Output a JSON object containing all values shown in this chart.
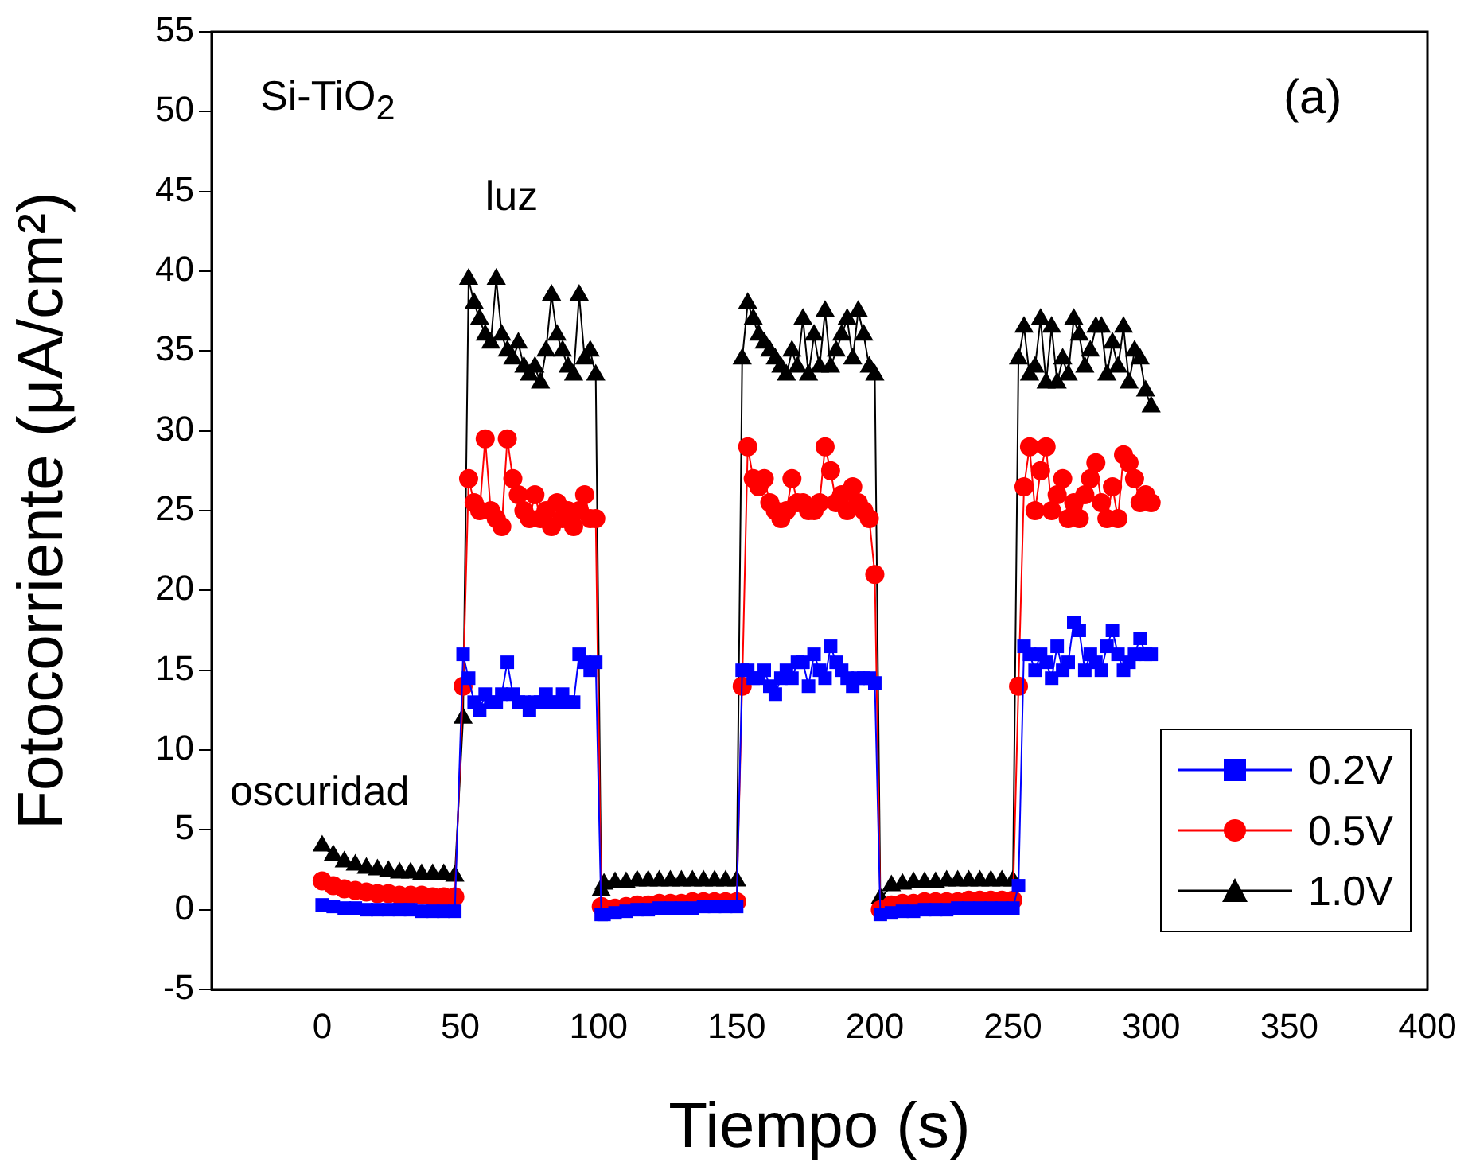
{
  "chart_data": {
    "type": "line",
    "xlabel": "Tiempo (s)",
    "ylabel": "Fotocorriente (μA/cm²)",
    "xlim": [
      -40,
      400
    ],
    "xticks": [
      0,
      50,
      100,
      150,
      200,
      250,
      300,
      350,
      400
    ],
    "ylim": [
      -5,
      55
    ],
    "yticks": [
      -5,
      0,
      5,
      10,
      15,
      20,
      25,
      30,
      35,
      40,
      45,
      50,
      55
    ],
    "grid": false,
    "legend": "bottom right",
    "line_style": "solid",
    "annotations": [
      "Si-TiO$_{2}$",
      "(a)",
      "luz",
      "oscuridad"
    ],
    "x": [
      0,
      4,
      8,
      12,
      16,
      20,
      24,
      28,
      32,
      36,
      40,
      44,
      48,
      51,
      53,
      55,
      57,
      59,
      61,
      63,
      65,
      67,
      69,
      71,
      73,
      75,
      77,
      79,
      81,
      83,
      85,
      87,
      89,
      91,
      93,
      95,
      97,
      99,
      101,
      102,
      106,
      110,
      114,
      118,
      122,
      126,
      130,
      134,
      138,
      142,
      146,
      150,
      152,
      154,
      156,
      158,
      160,
      162,
      164,
      166,
      168,
      170,
      172,
      174,
      176,
      178,
      180,
      182,
      184,
      186,
      188,
      190,
      192,
      194,
      196,
      198,
      200,
      202,
      206,
      210,
      214,
      218,
      222,
      226,
      230,
      234,
      238,
      242,
      246,
      250,
      252,
      254,
      256,
      258,
      260,
      262,
      264,
      266,
      268,
      270,
      272,
      274,
      276,
      278,
      280,
      282,
      284,
      286,
      288,
      290,
      292,
      294,
      296,
      298,
      300
    ],
    "series": [
      {
        "name": "0.2V",
        "color": "#0000ff",
        "marker": "square",
        "values": [
          0.3,
          0.2,
          0.1,
          0.1,
          0.0,
          0.0,
          0.0,
          0.0,
          0.0,
          -0.1,
          -0.1,
          -0.1,
          -0.1,
          16,
          14.5,
          13,
          12.5,
          13.5,
          13,
          13,
          13.5,
          15.5,
          13.5,
          13,
          13,
          12.5,
          13,
          13,
          13.5,
          13,
          13,
          13.5,
          13,
          13,
          16,
          15.5,
          15,
          15.5,
          -0.3,
          -0.3,
          -0.2,
          -0.1,
          0.0,
          0.0,
          0.1,
          0.1,
          0.1,
          0.1,
          0.2,
          0.2,
          0.2,
          0.2,
          15,
          15,
          14.5,
          14.5,
          15,
          14,
          13.5,
          14.5,
          15,
          14.5,
          15.5,
          15.5,
          14,
          16,
          15,
          14.5,
          16.5,
          15.5,
          15,
          14.5,
          14,
          14.5,
          14.5,
          14.5,
          14.2,
          -0.3,
          -0.2,
          -0.1,
          -0.1,
          0.0,
          0.0,
          0.0,
          0.1,
          0.1,
          0.1,
          0.1,
          0.1,
          0.1,
          1.5,
          16.5,
          16,
          15,
          16,
          15.5,
          14.5,
          16.5,
          15,
          15.5,
          18,
          17.5,
          15,
          16,
          15.5,
          15,
          16.5,
          17.5,
          16,
          15,
          15.5,
          16,
          17,
          16,
          16
        ]
      },
      {
        "name": "0.5V",
        "color": "#ff0000",
        "marker": "circle",
        "values": [
          1.8,
          1.5,
          1.3,
          1.2,
          1.1,
          1.0,
          1.0,
          0.9,
          0.9,
          0.9,
          0.8,
          0.8,
          0.8,
          14,
          27,
          25.5,
          25,
          29.5,
          25,
          24.5,
          24,
          29.5,
          27,
          26,
          25,
          24.5,
          26,
          24.5,
          25,
          24,
          25.5,
          24.5,
          25,
          24,
          25,
          26,
          24.5,
          24.5,
          0.2,
          0.0,
          0.1,
          0.2,
          0.3,
          0.3,
          0.4,
          0.4,
          0.4,
          0.5,
          0.5,
          0.5,
          0.5,
          0.5,
          14,
          29,
          27,
          26.5,
          27,
          25.5,
          25,
          24.5,
          25,
          27,
          25.5,
          25.5,
          25,
          25,
          25.5,
          29,
          27.5,
          25.5,
          26,
          25,
          26.5,
          25.5,
          25,
          24.5,
          21,
          0.0,
          0.3,
          0.4,
          0.4,
          0.5,
          0.5,
          0.5,
          0.5,
          0.6,
          0.6,
          0.6,
          0.6,
          0.6,
          14,
          26.5,
          29,
          25,
          27.5,
          29,
          25,
          26,
          27,
          24.5,
          25.5,
          24.5,
          26,
          27,
          28,
          25.5,
          24.5,
          26.5,
          24.5,
          28.5,
          28,
          27,
          25.5,
          26,
          25.5
        ]
      },
      {
        "name": "1.0V",
        "color": "#000000",
        "marker": "triangle",
        "values": [
          4.0,
          3.4,
          3.0,
          2.8,
          2.6,
          2.5,
          2.4,
          2.3,
          2.3,
          2.2,
          2.2,
          2.2,
          2.1,
          12,
          39.5,
          38,
          37,
          36,
          35.5,
          39.5,
          36,
          35,
          34.5,
          35.5,
          34,
          33.5,
          34,
          33,
          35,
          38.5,
          36,
          35,
          34,
          33.5,
          38.5,
          34.5,
          35,
          33.5,
          1.2,
          1.6,
          1.7,
          1.7,
          1.8,
          1.8,
          1.8,
          1.8,
          1.8,
          1.8,
          1.8,
          1.8,
          1.8,
          1.8,
          34.5,
          38,
          37,
          36,
          35.5,
          35,
          34.5,
          34,
          33.5,
          35,
          34,
          37,
          33.5,
          36,
          34,
          37.5,
          34,
          35,
          36,
          37,
          34.5,
          37.5,
          36,
          34,
          33.5,
          0.7,
          1.5,
          1.6,
          1.7,
          1.7,
          1.7,
          1.8,
          1.8,
          1.8,
          1.8,
          1.8,
          1.8,
          1.8,
          34.5,
          36.5,
          33.5,
          34,
          37,
          33,
          36.5,
          33,
          34.5,
          33.5,
          37,
          36,
          34,
          35,
          36.5,
          36.5,
          33.5,
          35.5,
          34,
          36.5,
          33,
          35,
          34.5,
          32.5,
          31.5
        ]
      }
    ]
  }
}
